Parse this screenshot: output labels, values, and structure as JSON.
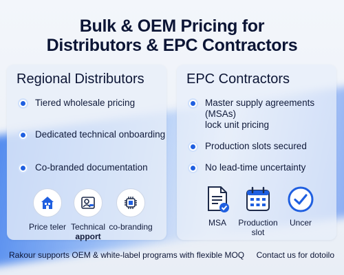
{
  "title": {
    "line1": "Bulk & OEM Pricing for",
    "line2": "Distributors & EPC Contractors"
  },
  "distributors": {
    "heading": "Regional Distributors",
    "bullets": [
      "Tiered wholesale pricing",
      "Dedicated technical onboarding",
      "Co-branded documentation"
    ],
    "icons": [
      {
        "icon": "house-icon",
        "label": "Price teler"
      },
      {
        "icon": "person-id-icon",
        "label_line1": "Technical",
        "label_line2": "apport"
      },
      {
        "icon": "chip-icon",
        "label": "co-branding"
      }
    ]
  },
  "epc": {
    "heading": "EPC Contractors",
    "bullets": [
      {
        "line1": "Master supply agreements",
        "line2": "(MSAs)",
        "line3": "lock unit pricing"
      },
      {
        "line1": "Production slots secured"
      },
      {
        "line1": "No lead-time uncertainty"
      }
    ],
    "icons": [
      {
        "icon": "document-check-icon",
        "label": "MSA"
      },
      {
        "icon": "calendar-icon",
        "label_line1": "Production",
        "label_line2": "slot"
      },
      {
        "icon": "check-circle-icon",
        "label": "Uncer"
      }
    ]
  },
  "footer": {
    "left": "Rakour supports OEM & white-label programs with flexible MOQ",
    "right": "Contact us for dotoilo"
  },
  "colors": {
    "accent": "#1f5fe0",
    "text": "#101a3a"
  }
}
